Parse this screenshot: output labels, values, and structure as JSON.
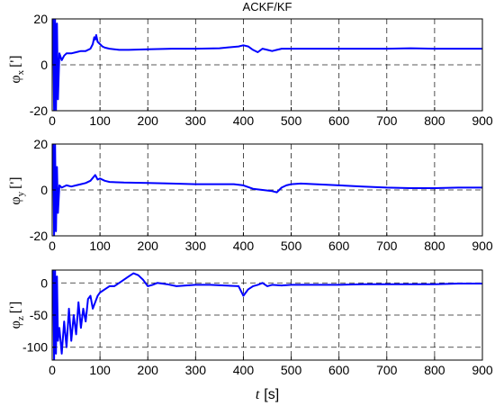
{
  "colors": {
    "series": "#0000ff",
    "grid": "#222222",
    "axis": "#000000"
  },
  "chart_data": [
    {
      "type": "line",
      "title": "ACKF/KF",
      "ylabel": {
        "symbol": "φ",
        "subscript": "x",
        "unit": "[']"
      },
      "xlim": [
        0,
        900
      ],
      "ylim": [
        -20,
        20
      ],
      "xticks": [
        "0",
        "100",
        "200",
        "300",
        "400",
        "500",
        "600",
        "700",
        "800",
        "900"
      ],
      "yticks": [
        "20",
        "0",
        "-20"
      ],
      "grid": true,
      "series": [
        {
          "color": "#0000ff",
          "x": [
            0,
            2,
            4,
            6,
            8,
            10,
            12,
            15,
            20,
            25,
            30,
            40,
            50,
            60,
            70,
            80,
            85,
            88,
            90,
            92,
            95,
            100,
            105,
            110,
            120,
            140,
            160,
            200,
            250,
            300,
            350,
            390,
            400,
            410,
            420,
            430,
            440,
            450,
            460,
            470,
            480,
            500,
            600,
            700,
            750,
            800,
            850,
            900
          ],
          "y": [
            0,
            20,
            -20,
            20,
            -20,
            18,
            -15,
            5,
            2,
            4,
            5,
            5,
            5.5,
            6,
            6,
            7,
            9,
            12,
            11,
            13,
            10,
            9,
            8,
            7.5,
            7,
            6.5,
            6.5,
            6.8,
            7,
            7,
            7.2,
            8,
            8.5,
            8,
            6.5,
            5.5,
            7,
            6.5,
            6,
            6.5,
            7,
            7,
            7,
            7,
            7.2,
            7,
            7,
            7
          ]
        }
      ]
    },
    {
      "type": "line",
      "ylabel": {
        "symbol": "φ",
        "subscript": "y",
        "unit": "[']"
      },
      "xlim": [
        0,
        900
      ],
      "ylim": [
        -20,
        20
      ],
      "xticks": [
        "0",
        "100",
        "200",
        "300",
        "400",
        "500",
        "600",
        "700",
        "800",
        "900"
      ],
      "yticks": [
        "20",
        "0",
        "-20"
      ],
      "grid": true,
      "series": [
        {
          "color": "#0000ff",
          "x": [
            0,
            2,
            4,
            6,
            8,
            10,
            12,
            15,
            20,
            30,
            40,
            50,
            60,
            70,
            80,
            90,
            95,
            100,
            110,
            120,
            150,
            200,
            250,
            300,
            350,
            380,
            400,
            420,
            440,
            460,
            470,
            480,
            490,
            500,
            520,
            550,
            600,
            650,
            700,
            750,
            800,
            850,
            900
          ],
          "y": [
            0,
            20,
            -20,
            20,
            -18,
            10,
            -10,
            2,
            1,
            2,
            1.5,
            2,
            2.5,
            3,
            4,
            6.5,
            4.5,
            5,
            4,
            3.5,
            3.2,
            3,
            2.8,
            2.5,
            2.5,
            2.5,
            2,
            0.5,
            0,
            -0.5,
            -1,
            1,
            2,
            2.5,
            2.8,
            2.5,
            2,
            1.5,
            1,
            0.8,
            0.8,
            1,
            1
          ]
        }
      ]
    },
    {
      "type": "line",
      "ylabel": {
        "symbol": "φ",
        "subscript": "z",
        "unit": "[']"
      },
      "xlim": [
        0,
        900
      ],
      "ylim": [
        -120,
        20
      ],
      "xticks": [
        "0",
        "100",
        "200",
        "300",
        "400",
        "500",
        "600",
        "700",
        "800",
        "900"
      ],
      "yticks": [
        "0",
        "-50",
        "-100"
      ],
      "grid": true,
      "series": [
        {
          "color": "#0000ff",
          "x": [
            0,
            2,
            4,
            6,
            8,
            10,
            12,
            15,
            20,
            25,
            30,
            35,
            40,
            45,
            50,
            55,
            60,
            65,
            70,
            75,
            80,
            85,
            90,
            95,
            100,
            110,
            120,
            130,
            140,
            150,
            160,
            170,
            180,
            190,
            200,
            210,
            220,
            240,
            260,
            280,
            300,
            330,
            360,
            390,
            400,
            405,
            410,
            420,
            430,
            440,
            450,
            460,
            480,
            500,
            550,
            600,
            650,
            700,
            750,
            800,
            850,
            900
          ],
          "y": [
            0,
            20,
            -120,
            20,
            -110,
            10,
            -90,
            -70,
            -110,
            -60,
            -100,
            -40,
            -90,
            -50,
            -80,
            -30,
            -70,
            -40,
            -60,
            -25,
            -20,
            -40,
            -30,
            -20,
            -15,
            -10,
            -5,
            -5,
            0,
            5,
            10,
            15,
            12,
            5,
            -5,
            -3,
            0,
            -2,
            -5,
            -4,
            -3,
            -3,
            -4,
            -5,
            -20,
            -15,
            -10,
            -5,
            -3,
            0,
            -5,
            -3,
            -4,
            -3,
            -3,
            -3,
            -2,
            -2,
            -2,
            -2,
            -1,
            -1
          ]
        }
      ]
    }
  ],
  "figure": {
    "xlabel": {
      "symbol": "t",
      "unit": "[s]"
    }
  }
}
